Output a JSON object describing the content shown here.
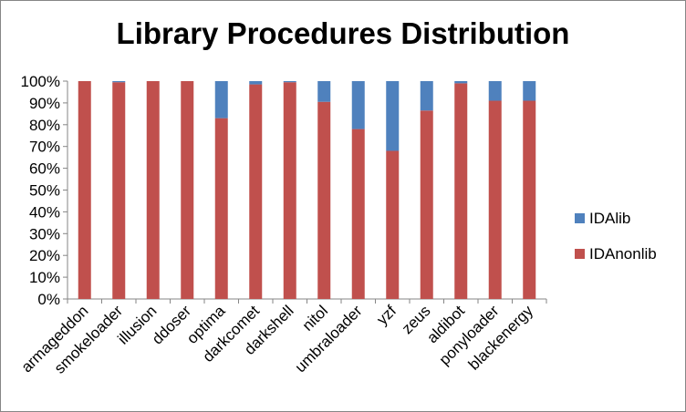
{
  "chart_data": {
    "type": "bar",
    "stacked": true,
    "title": "Library Procedures Distribution",
    "categories": [
      "armageddon",
      "smokeloader",
      "illusion",
      "ddoser",
      "optima",
      "darkcomet",
      "darkshell",
      "nitol",
      "umbraloader",
      "yzf",
      "zeus",
      "aldibot",
      "ponyloader",
      "blackenergy"
    ],
    "series": [
      {
        "name": "IDAnonlib",
        "color": "#C0504D",
        "values": [
          100,
          99.5,
          100,
          100,
          83,
          98.5,
          99.5,
          90.5,
          78,
          68,
          86.5,
          99,
          91,
          91
        ]
      },
      {
        "name": "IDAlib",
        "color": "#4F81BD",
        "values": [
          0,
          0.5,
          0,
          0,
          17,
          1.5,
          0.5,
          9.5,
          22,
          32,
          13.5,
          1,
          9,
          9
        ]
      }
    ],
    "ylim": [
      0,
      100
    ],
    "yticks": [
      "0%",
      "10%",
      "20%",
      "30%",
      "40%",
      "50%",
      "60%",
      "70%",
      "80%",
      "90%",
      "100%"
    ],
    "legend_position": "right",
    "legend_order": [
      "IDAlib",
      "IDAnonlib"
    ],
    "grid": false
  }
}
